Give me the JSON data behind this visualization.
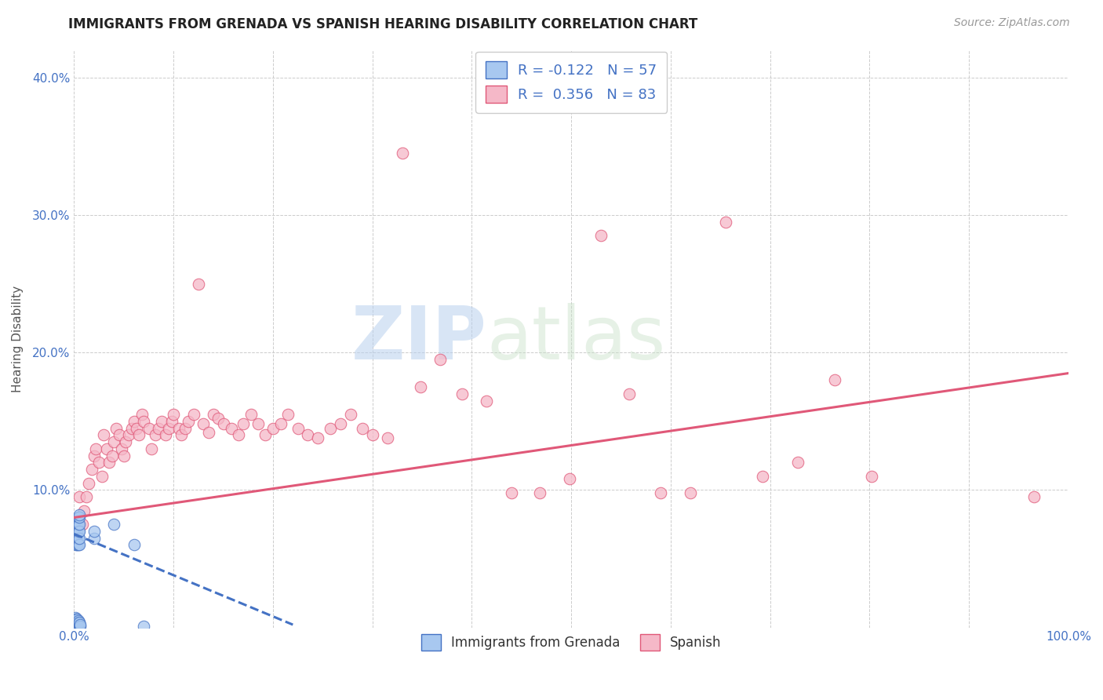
{
  "title": "IMMIGRANTS FROM GRENADA VS SPANISH HEARING DISABILITY CORRELATION CHART",
  "source": "Source: ZipAtlas.com",
  "ylabel": "Hearing Disability",
  "xlim": [
    0,
    1.0
  ],
  "ylim": [
    0,
    0.42
  ],
  "xticks": [
    0.0,
    0.1,
    0.2,
    0.3,
    0.4,
    0.5,
    0.6,
    0.7,
    0.8,
    0.9,
    1.0
  ],
  "yticks": [
    0.0,
    0.1,
    0.2,
    0.3,
    0.4
  ],
  "ytick_labels": [
    "",
    "10.0%",
    "20.0%",
    "30.0%",
    "40.0%"
  ],
  "xtick_labels": [
    "0.0%",
    "",
    "",
    "",
    "",
    "",
    "",
    "",
    "",
    "",
    "100.0%"
  ],
  "blue_color": "#a8c8f0",
  "pink_color": "#f5b8c8",
  "blue_line_color": "#4472c4",
  "pink_line_color": "#e05878",
  "axis_label_color": "#4472c4",
  "watermark_zip": "ZIP",
  "watermark_atlas": "atlas",
  "legend_label1": "R = -0.122   N = 57",
  "legend_label2": "R =  0.356   N = 83",
  "blue_scatter_x": [
    0.001,
    0.001,
    0.001,
    0.001,
    0.001,
    0.001,
    0.001,
    0.001,
    0.001,
    0.001,
    0.002,
    0.002,
    0.002,
    0.002,
    0.002,
    0.002,
    0.002,
    0.002,
    0.002,
    0.002,
    0.003,
    0.003,
    0.003,
    0.003,
    0.003,
    0.003,
    0.003,
    0.003,
    0.003,
    0.003,
    0.004,
    0.004,
    0.004,
    0.004,
    0.004,
    0.004,
    0.004,
    0.004,
    0.004,
    0.004,
    0.005,
    0.005,
    0.005,
    0.005,
    0.005,
    0.005,
    0.005,
    0.005,
    0.005,
    0.005,
    0.006,
    0.006,
    0.02,
    0.02,
    0.04,
    0.06,
    0.07
  ],
  "blue_scatter_y": [
    0.001,
    0.002,
    0.003,
    0.004,
    0.005,
    0.006,
    0.007,
    0.065,
    0.07,
    0.075,
    0.001,
    0.002,
    0.003,
    0.004,
    0.005,
    0.006,
    0.06,
    0.065,
    0.07,
    0.075,
    0.001,
    0.002,
    0.003,
    0.004,
    0.005,
    0.006,
    0.06,
    0.065,
    0.07,
    0.075,
    0.001,
    0.002,
    0.003,
    0.004,
    0.005,
    0.06,
    0.065,
    0.07,
    0.075,
    0.08,
    0.001,
    0.002,
    0.003,
    0.004,
    0.06,
    0.065,
    0.07,
    0.075,
    0.08,
    0.082,
    0.001,
    0.002,
    0.065,
    0.07,
    0.075,
    0.06,
    0.001
  ],
  "pink_scatter_x": [
    0.005,
    0.008,
    0.01,
    0.012,
    0.015,
    0.018,
    0.02,
    0.022,
    0.025,
    0.028,
    0.03,
    0.033,
    0.035,
    0.038,
    0.04,
    0.042,
    0.045,
    0.048,
    0.05,
    0.052,
    0.055,
    0.058,
    0.06,
    0.063,
    0.065,
    0.068,
    0.07,
    0.075,
    0.078,
    0.082,
    0.085,
    0.088,
    0.092,
    0.095,
    0.098,
    0.1,
    0.105,
    0.108,
    0.112,
    0.115,
    0.12,
    0.125,
    0.13,
    0.135,
    0.14,
    0.145,
    0.15,
    0.158,
    0.165,
    0.17,
    0.178,
    0.185,
    0.192,
    0.2,
    0.208,
    0.215,
    0.225,
    0.235,
    0.245,
    0.258,
    0.268,
    0.278,
    0.29,
    0.3,
    0.315,
    0.33,
    0.348,
    0.368,
    0.39,
    0.415,
    0.44,
    0.468,
    0.498,
    0.53,
    0.558,
    0.59,
    0.62,
    0.655,
    0.692,
    0.728,
    0.765,
    0.802,
    0.965
  ],
  "pink_scatter_y": [
    0.095,
    0.075,
    0.085,
    0.095,
    0.105,
    0.115,
    0.125,
    0.13,
    0.12,
    0.11,
    0.14,
    0.13,
    0.12,
    0.125,
    0.135,
    0.145,
    0.14,
    0.13,
    0.125,
    0.135,
    0.14,
    0.145,
    0.15,
    0.145,
    0.14,
    0.155,
    0.15,
    0.145,
    0.13,
    0.14,
    0.145,
    0.15,
    0.14,
    0.145,
    0.15,
    0.155,
    0.145,
    0.14,
    0.145,
    0.15,
    0.155,
    0.25,
    0.148,
    0.142,
    0.155,
    0.152,
    0.148,
    0.145,
    0.14,
    0.148,
    0.155,
    0.148,
    0.14,
    0.145,
    0.148,
    0.155,
    0.145,
    0.14,
    0.138,
    0.145,
    0.148,
    0.155,
    0.145,
    0.14,
    0.138,
    0.345,
    0.175,
    0.195,
    0.17,
    0.165,
    0.098,
    0.098,
    0.108,
    0.285,
    0.17,
    0.098,
    0.098,
    0.295,
    0.11,
    0.12,
    0.18,
    0.11,
    0.095
  ],
  "pink_trend_x0": 0.0,
  "pink_trend_x1": 1.0,
  "pink_trend_y0": 0.08,
  "pink_trend_y1": 0.185,
  "blue_trend_x0": 0.0,
  "blue_trend_x1": 0.22,
  "blue_trend_y0": 0.068,
  "blue_trend_y1": 0.002
}
